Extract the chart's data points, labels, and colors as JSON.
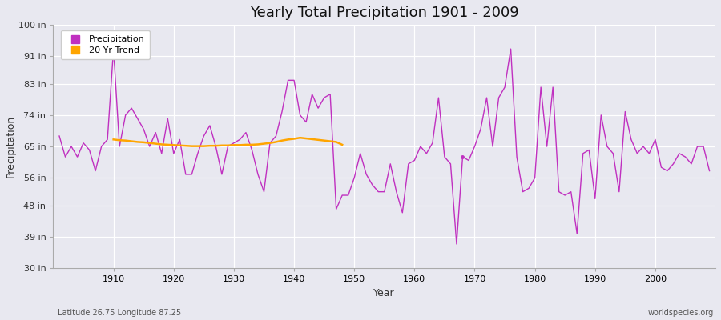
{
  "title": "Yearly Total Precipitation 1901 - 2009",
  "xlabel": "Year",
  "ylabel": "Precipitation",
  "lat_lon_label": "Latitude 26.75 Longitude 87.25",
  "watermark": "worldspecies.org",
  "bg_color": "#e8e8f0",
  "plot_bg_color": "#e8e8f0",
  "line_color": "#c030c0",
  "trend_color": "#FFA500",
  "ylim": [
    30,
    100
  ],
  "yticks": [
    30,
    39,
    48,
    56,
    65,
    74,
    83,
    91,
    100
  ],
  "ytick_labels": [
    "30 in",
    "39 in",
    "48 in",
    "56 in",
    "65 in",
    "74 in",
    "83 in",
    "91 in",
    "100 in"
  ],
  "xlim": [
    1900,
    2010
  ],
  "years": [
    1901,
    1902,
    1903,
    1904,
    1905,
    1906,
    1907,
    1908,
    1909,
    1910,
    1911,
    1912,
    1913,
    1914,
    1915,
    1916,
    1917,
    1918,
    1919,
    1920,
    1921,
    1922,
    1923,
    1924,
    1925,
    1926,
    1927,
    1928,
    1929,
    1930,
    1931,
    1932,
    1933,
    1934,
    1935,
    1936,
    1937,
    1938,
    1939,
    1940,
    1941,
    1942,
    1943,
    1944,
    1945,
    1946,
    1947,
    1948,
    1949,
    1950,
    1951,
    1952,
    1953,
    1954,
    1955,
    1956,
    1957,
    1958,
    1959,
    1960,
    1961,
    1962,
    1963,
    1964,
    1965,
    1966,
    1967,
    1968,
    1969,
    1970,
    1971,
    1972,
    1973,
    1974,
    1975,
    1976,
    1977,
    1978,
    1979,
    1980,
    1981,
    1982,
    1983,
    1984,
    1985,
    1986,
    1987,
    1988,
    1989,
    1990,
    1991,
    1992,
    1993,
    1994,
    1995,
    1996,
    1997,
    1998,
    1999,
    2000,
    2001,
    2002,
    2003,
    2004,
    2005,
    2006,
    2007,
    2008,
    2009
  ],
  "precip": [
    68,
    62,
    65,
    62,
    66,
    64,
    58,
    65,
    67,
    93,
    65,
    74,
    76,
    73,
    70,
    65,
    69,
    63,
    73,
    63,
    67,
    57,
    57,
    63,
    68,
    71,
    65,
    57,
    65,
    66,
    67,
    69,
    64,
    57,
    52,
    66,
    68,
    75,
    84,
    84,
    74,
    72,
    80,
    76,
    79,
    80,
    47,
    51,
    51,
    56,
    63,
    57,
    54,
    52,
    52,
    60,
    52,
    46,
    60,
    61,
    65,
    63,
    66,
    79,
    62,
    60,
    37,
    62,
    61,
    65,
    70,
    79,
    65,
    79,
    82,
    93,
    62,
    52,
    53,
    56,
    82,
    65,
    82,
    52,
    51,
    52,
    40,
    63,
    64,
    50,
    74,
    65,
    63,
    52,
    75,
    67,
    63,
    65,
    63,
    67,
    59,
    58,
    60,
    63,
    62,
    60,
    65,
    65,
    58
  ],
  "trend_years": [
    1910,
    1911,
    1912,
    1913,
    1914,
    1915,
    1916,
    1917,
    1918,
    1919,
    1920,
    1921,
    1922,
    1923,
    1924,
    1925,
    1926,
    1927,
    1928,
    1929,
    1930,
    1931,
    1932,
    1933,
    1934,
    1935,
    1936,
    1937,
    1938,
    1939,
    1940,
    1941,
    1942,
    1943,
    1944,
    1945,
    1946,
    1947,
    1948
  ],
  "trend_values": [
    67.0,
    66.8,
    66.7,
    66.5,
    66.3,
    66.2,
    66.0,
    65.8,
    65.6,
    65.5,
    65.4,
    65.3,
    65.2,
    65.1,
    65.1,
    65.1,
    65.2,
    65.2,
    65.3,
    65.3,
    65.4,
    65.4,
    65.5,
    65.5,
    65.6,
    65.8,
    66.0,
    66.3,
    66.7,
    67.0,
    67.2,
    67.5,
    67.3,
    67.1,
    66.9,
    66.7,
    66.5,
    66.3,
    65.5
  ],
  "isolated_point_year": 1968,
  "isolated_point_value": 62,
  "legend_line_marker": "s"
}
